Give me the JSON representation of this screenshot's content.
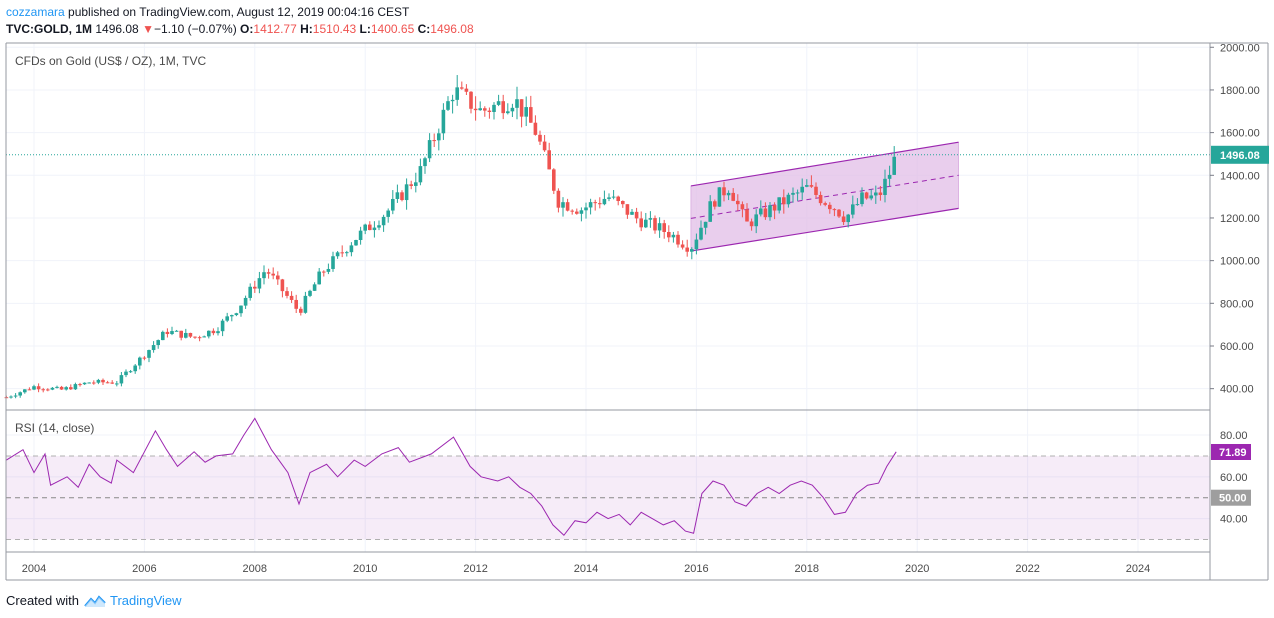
{
  "header": {
    "author": "cozzamara",
    "published_text": " published on TradingView.com, August 12, 2019 00:04:16 CEST",
    "symbol": "TVC:GOLD, 1M",
    "last": "1496.08",
    "change": "−1.10 (−0.07%)",
    "open_label": "O:",
    "open": "1412.77",
    "high_label": "H:",
    "high": "1510.43",
    "low_label": "L:",
    "low": "1400.65",
    "close_label": "C:",
    "close": "1496.08"
  },
  "footer": {
    "created_with": "Created with",
    "brand": "TradingView"
  },
  "colors": {
    "up": "#26a69a",
    "down": "#ef5350",
    "rsi": "#9c27b0",
    "channel_fill": "#e1bee7",
    "price_line": "#26a69a"
  },
  "chart_data": [
    {
      "type": "candlestick",
      "title": "CFDs on Gold (US$ / OZ), 1M, TVC",
      "x_ticks": [
        "2004",
        "2006",
        "2008",
        "2010",
        "2012",
        "2014",
        "2016",
        "2018",
        "2020",
        "2022",
        "2024"
      ],
      "y_ticks": [
        "400.00",
        "600.00",
        "800.00",
        "1000.00",
        "1200.00",
        "1400.00",
        "1600.00",
        "1800.00",
        "2000.00"
      ],
      "ylim": [
        300,
        2020
      ],
      "last_price_label": "1496.08",
      "last_price": 1496.08,
      "anchors": [
        [
          2003.5,
          360
        ],
        [
          2004.0,
          410
        ],
        [
          2004.5,
          395
        ],
        [
          2005.0,
          430
        ],
        [
          2005.5,
          430
        ],
        [
          2006.0,
          560
        ],
        [
          2006.4,
          670
        ],
        [
          2006.9,
          640
        ],
        [
          2007.3,
          680
        ],
        [
          2007.7,
          780
        ],
        [
          2008.2,
          960
        ],
        [
          2008.8,
          760
        ],
        [
          2009.2,
          940
        ],
        [
          2009.8,
          1100
        ],
        [
          2010.4,
          1230
        ],
        [
          2011.0,
          1420
        ],
        [
          2011.6,
          1800
        ],
        [
          2012.1,
          1700
        ],
        [
          2012.7,
          1760
        ],
        [
          2013.1,
          1600
        ],
        [
          2013.5,
          1280
        ],
        [
          2013.9,
          1240
        ],
        [
          2014.4,
          1300
        ],
        [
          2014.9,
          1200
        ],
        [
          2015.5,
          1130
        ],
        [
          2015.9,
          1060
        ],
        [
          2016.3,
          1280
        ],
        [
          2016.6,
          1350
        ],
        [
          2016.9,
          1170
        ],
        [
          2017.4,
          1250
        ],
        [
          2018.0,
          1340
        ],
        [
          2018.5,
          1250
        ],
        [
          2018.7,
          1200
        ],
        [
          2019.0,
          1290
        ],
        [
          2019.3,
          1300
        ],
        [
          2019.5,
          1410
        ],
        [
          2019.62,
          1496
        ]
      ],
      "channel": {
        "start": 2015.9,
        "end": 2020.75,
        "upper_start": 1350,
        "upper_end": 1555,
        "lower_start": 1045,
        "lower_end": 1245,
        "mid_start": 1198,
        "mid_end": 1400
      }
    },
    {
      "type": "line",
      "title": "RSI (14, close)",
      "y_ticks": [
        "40.00",
        "60.00",
        "80.00"
      ],
      "ylim": [
        24,
        92
      ],
      "bands": [
        70,
        30
      ],
      "midline": 50,
      "midline_label": "50.00",
      "last_value_label": "71.89",
      "last_value": 71.89,
      "points": [
        [
          2003.5,
          68
        ],
        [
          2003.8,
          73
        ],
        [
          2004.0,
          62
        ],
        [
          2004.2,
          71
        ],
        [
          2004.3,
          56
        ],
        [
          2004.6,
          60
        ],
        [
          2004.8,
          55
        ],
        [
          2005.0,
          66
        ],
        [
          2005.2,
          60
        ],
        [
          2005.4,
          57
        ],
        [
          2005.5,
          68
        ],
        [
          2005.8,
          62
        ],
        [
          2006.0,
          72
        ],
        [
          2006.2,
          82
        ],
        [
          2006.4,
          73
        ],
        [
          2006.6,
          65
        ],
        [
          2006.9,
          72
        ],
        [
          2007.1,
          67
        ],
        [
          2007.3,
          70
        ],
        [
          2007.6,
          71
        ],
        [
          2007.8,
          80
        ],
        [
          2008.0,
          88
        ],
        [
          2008.3,
          73
        ],
        [
          2008.6,
          62
        ],
        [
          2008.8,
          47
        ],
        [
          2009.0,
          62
        ],
        [
          2009.3,
          66
        ],
        [
          2009.5,
          60
        ],
        [
          2009.8,
          68
        ],
        [
          2010.0,
          65
        ],
        [
          2010.3,
          71
        ],
        [
          2010.6,
          74
        ],
        [
          2010.8,
          67
        ],
        [
          2011.2,
          71
        ],
        [
          2011.6,
          79
        ],
        [
          2011.9,
          65
        ],
        [
          2012.1,
          60
        ],
        [
          2012.4,
          58
        ],
        [
          2012.6,
          60
        ],
        [
          2012.8,
          55
        ],
        [
          2013.0,
          52
        ],
        [
          2013.2,
          46
        ],
        [
          2013.4,
          37
        ],
        [
          2013.6,
          32
        ],
        [
          2013.8,
          39
        ],
        [
          2014.0,
          38
        ],
        [
          2014.2,
          43
        ],
        [
          2014.4,
          40
        ],
        [
          2014.6,
          42
        ],
        [
          2014.8,
          37
        ],
        [
          2015.0,
          43
        ],
        [
          2015.2,
          40
        ],
        [
          2015.4,
          37
        ],
        [
          2015.6,
          39
        ],
        [
          2015.8,
          34
        ],
        [
          2015.95,
          33
        ],
        [
          2016.1,
          52
        ],
        [
          2016.3,
          58
        ],
        [
          2016.5,
          56
        ],
        [
          2016.7,
          48
        ],
        [
          2016.9,
          46
        ],
        [
          2017.1,
          52
        ],
        [
          2017.3,
          55
        ],
        [
          2017.5,
          52
        ],
        [
          2017.7,
          56
        ],
        [
          2017.9,
          58
        ],
        [
          2018.1,
          56
        ],
        [
          2018.3,
          50
        ],
        [
          2018.5,
          42
        ],
        [
          2018.7,
          43
        ],
        [
          2018.9,
          52
        ],
        [
          2019.1,
          56
        ],
        [
          2019.3,
          57
        ],
        [
          2019.45,
          65
        ],
        [
          2019.62,
          72
        ]
      ]
    }
  ]
}
